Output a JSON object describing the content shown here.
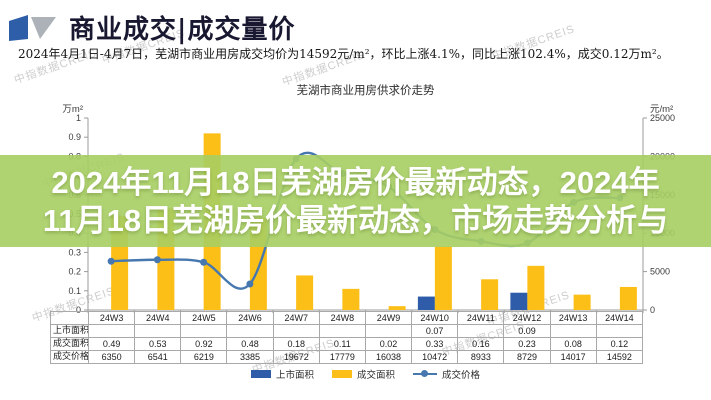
{
  "header": {
    "title": "商业成交|成交量价",
    "subtitle": "2024年4月1日-4月7日，芜湖市商业用房成交均价为14592元/m²，环比上涨4.1%，同比上涨102.4%，成交0.12万m²。"
  },
  "icons": {
    "logo": "brand-ribbon-icon"
  },
  "watermark": {
    "text": "中指数据CREIS"
  },
  "overlay": {
    "lines": [
      "2024年11月18日芜湖房价最新动态，2024年",
      "11月18日芜湖房价最新动态，市场走势分析与"
    ],
    "background": "rgba(167,206,99,0.9)",
    "text_color": "#FFFFFF"
  },
  "chart_data": {
    "type": "bar",
    "subtype": "bar+line combo",
    "title": "芜湖市商业用房供求价走势",
    "categories": [
      "24W3",
      "24W4",
      "24W5",
      "24W6",
      "24W7",
      "24W8",
      "24W9",
      "24W10",
      "24W11",
      "24W12",
      "24W13",
      "24W14"
    ],
    "series": [
      {
        "name": "上市面积",
        "type": "bar",
        "axis": "left",
        "color": "#2F5CA8",
        "values": [
          null,
          null,
          null,
          null,
          null,
          null,
          null,
          0.07,
          null,
          0.09,
          null,
          null
        ]
      },
      {
        "name": "成交面积",
        "type": "bar",
        "axis": "left",
        "color": "#FBBF17",
        "values": [
          0.49,
          0.53,
          0.92,
          0.48,
          0.18,
          0.11,
          0.02,
          0.33,
          0.16,
          0.23,
          0.08,
          0.12
        ]
      },
      {
        "name": "成交价格",
        "type": "line",
        "axis": "right",
        "color": "#4678AF",
        "values": [
          6350,
          6541,
          6219,
          3385,
          19672,
          17779,
          16038,
          10472,
          8933,
          8729,
          14017,
          14592
        ]
      }
    ],
    "left_axis": {
      "label": "万m²",
      "min": 0,
      "max": 1,
      "step": 0.1
    },
    "right_axis": {
      "label": "元/m²",
      "min": 0,
      "max": 25000,
      "step": 5000
    },
    "grid": false,
    "legend_position": "bottom"
  },
  "data_table": {
    "row_labels": [
      "上市面积",
      "成交面积",
      "成交价格"
    ],
    "rows": [
      [
        "",
        "",
        "",
        "",
        "",
        "",
        "",
        "0.07",
        "",
        "0.09",
        "",
        ""
      ],
      [
        "0.49",
        "0.53",
        "0.92",
        "0.48",
        "0.18",
        "0.11",
        "0.02",
        "0.33",
        "0.16",
        "0.23",
        "0.08",
        "0.12"
      ],
      [
        "6350",
        "6541",
        "6219",
        "3385",
        "19672",
        "17779",
        "16038",
        "10472",
        "8933",
        "8729",
        "14017",
        "14592"
      ]
    ]
  },
  "legend": {
    "items": [
      {
        "label": "上市面积",
        "swatch": "bar",
        "color": "#2F5CA8"
      },
      {
        "label": "成交面积",
        "swatch": "bar",
        "color": "#FBBF17"
      },
      {
        "label": "成交价格",
        "swatch": "line",
        "color": "#4678AF"
      }
    ]
  }
}
